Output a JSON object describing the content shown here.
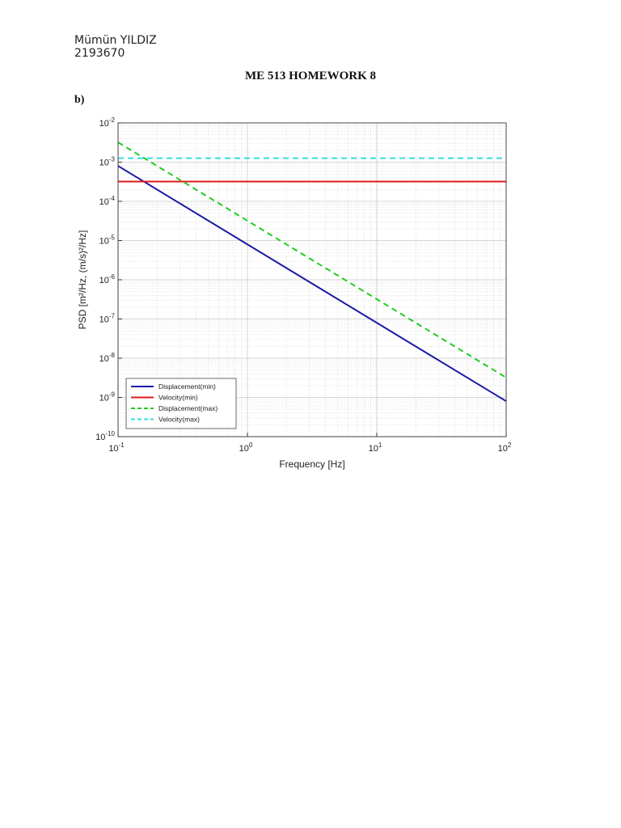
{
  "document": {
    "author_name": "Mümün YILDIZ",
    "student_id": "2193670",
    "title": "ME 513 HOMEWORK 8",
    "part_label": "b)"
  },
  "chart_data": {
    "type": "line",
    "xlabel": "Frequency [Hz]",
    "ylabel": "PSD [m²/Hz, (m/s)²/Hz]",
    "x_scale": "log",
    "y_scale": "log",
    "xlim": [
      0.1,
      100
    ],
    "ylim": [
      1e-10,
      0.01
    ],
    "x_ticks": [
      {
        "value": 0.1,
        "base": "10",
        "exp": "-1"
      },
      {
        "value": 1,
        "base": "10",
        "exp": "0"
      },
      {
        "value": 10,
        "base": "10",
        "exp": "1"
      },
      {
        "value": 100,
        "base": "10",
        "exp": "2"
      }
    ],
    "y_ticks": [
      {
        "value": 0.01,
        "base": "10",
        "exp": "-2"
      },
      {
        "value": 0.001,
        "base": "10",
        "exp": "-3"
      },
      {
        "value": 0.0001,
        "base": "10",
        "exp": "-4"
      },
      {
        "value": 1e-05,
        "base": "10",
        "exp": "-5"
      },
      {
        "value": 1e-06,
        "base": "10",
        "exp": "-6"
      },
      {
        "value": 1e-07,
        "base": "10",
        "exp": "-7"
      },
      {
        "value": 1e-08,
        "base": "10",
        "exp": "-8"
      },
      {
        "value": 1e-09,
        "base": "10",
        "exp": "-9"
      },
      {
        "value": 1e-10,
        "base": "10",
        "exp": "-10"
      }
    ],
    "grid": true,
    "legend_position": "bottom-left",
    "series": [
      {
        "name": "Displacement(min)",
        "color": "#1a1aa6",
        "style": "solid",
        "x": [
          0.1,
          100
        ],
        "y": [
          0.0008,
          8e-10
        ]
      },
      {
        "name": "Velocity(min)",
        "color": "#e01b1b",
        "style": "solid",
        "x": [
          0.1,
          100
        ],
        "y": [
          0.00032,
          0.00032
        ]
      },
      {
        "name": "Displacement(max)",
        "color": "#22cc22",
        "style": "dashed",
        "x": [
          0.1,
          100
        ],
        "y": [
          0.0032,
          3.2e-09
        ]
      },
      {
        "name": "Velocity(max)",
        "color": "#33dddd",
        "style": "dashed",
        "x": [
          0.1,
          100
        ],
        "y": [
          0.00126,
          0.00126
        ]
      }
    ]
  }
}
